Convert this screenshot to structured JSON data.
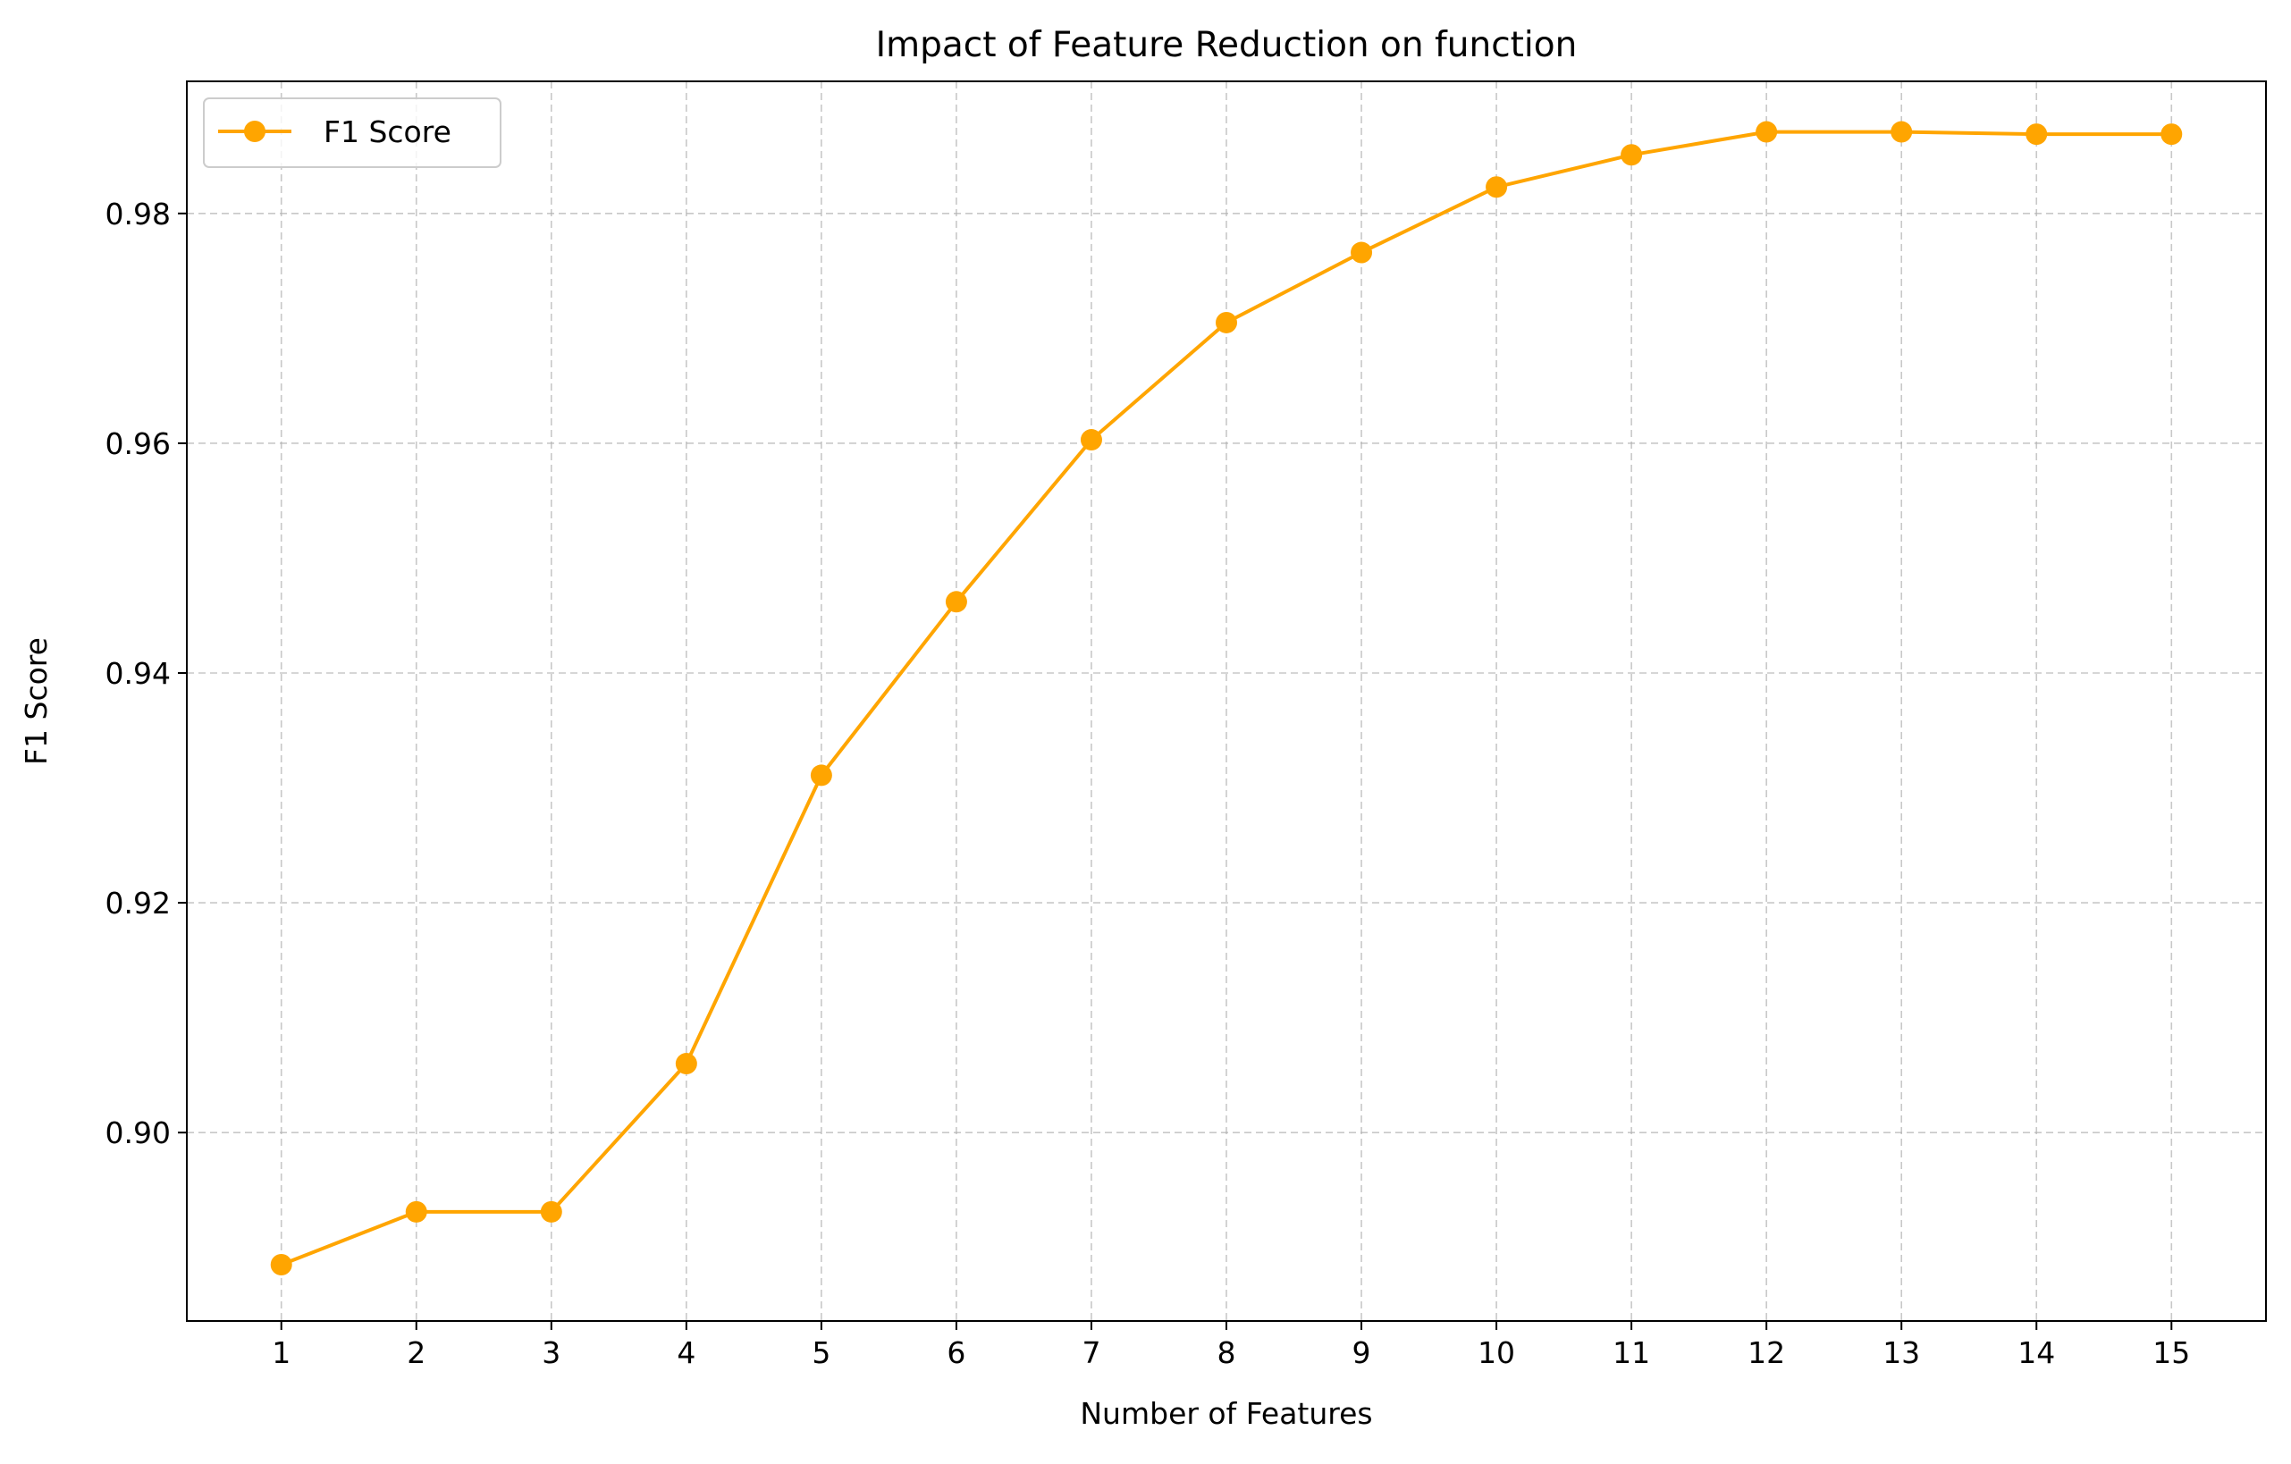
{
  "chart_data": {
    "type": "line",
    "title": "Impact of Feature Reduction on function",
    "xlabel": "Number of Features",
    "ylabel": "F1 Score",
    "x": [
      1,
      2,
      3,
      4,
      5,
      6,
      7,
      8,
      9,
      10,
      11,
      12,
      13,
      14,
      15
    ],
    "x_tick_labels": [
      "1",
      "2",
      "3",
      "4",
      "5",
      "6",
      "7",
      "8",
      "9",
      "10",
      "11",
      "12",
      "13",
      "14",
      "15"
    ],
    "xlim": [
      0.3,
      15.7
    ],
    "ylim": [
      0.8836,
      0.9915
    ],
    "y_ticks": [
      0.9,
      0.92,
      0.94,
      0.96,
      0.98
    ],
    "y_tick_labels": [
      "0.90",
      "0.92",
      "0.94",
      "0.96",
      "0.98"
    ],
    "grid": true,
    "legend_position": "upper-left",
    "series": [
      {
        "name": "F1 Score",
        "color": "#FFA500",
        "marker": "circle",
        "values": [
          0.8885,
          0.8931,
          0.8931,
          0.906,
          0.9311,
          0.9462,
          0.9603,
          0.9705,
          0.9766,
          0.9823,
          0.9851,
          0.9871,
          0.9871,
          0.9869,
          0.9869
        ]
      }
    ]
  }
}
